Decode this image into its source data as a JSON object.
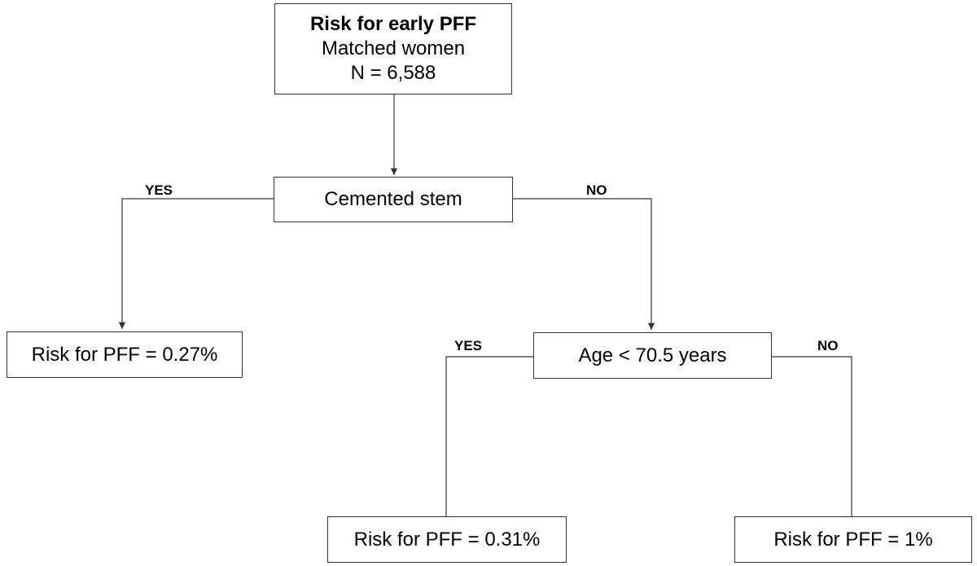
{
  "root": {
    "title": "Risk for early PFF",
    "subtitle": "Matched women",
    "count": "N = 6,588"
  },
  "split1": {
    "label": "Cemented stem",
    "yes_label": "YES",
    "no_label": "NO"
  },
  "leaf_cemented": {
    "label": "Risk for PFF = 0.27%"
  },
  "split2": {
    "label": "Age < 70.5 years",
    "yes_label": "YES",
    "no_label": "NO"
  },
  "leaf_young": {
    "label": "Risk for PFF = 0.31%"
  },
  "leaf_old": {
    "label": "Risk for PFF = 1%"
  },
  "colors": {
    "line": "#333333",
    "box_border": "#333333",
    "background": "#ffffff"
  }
}
